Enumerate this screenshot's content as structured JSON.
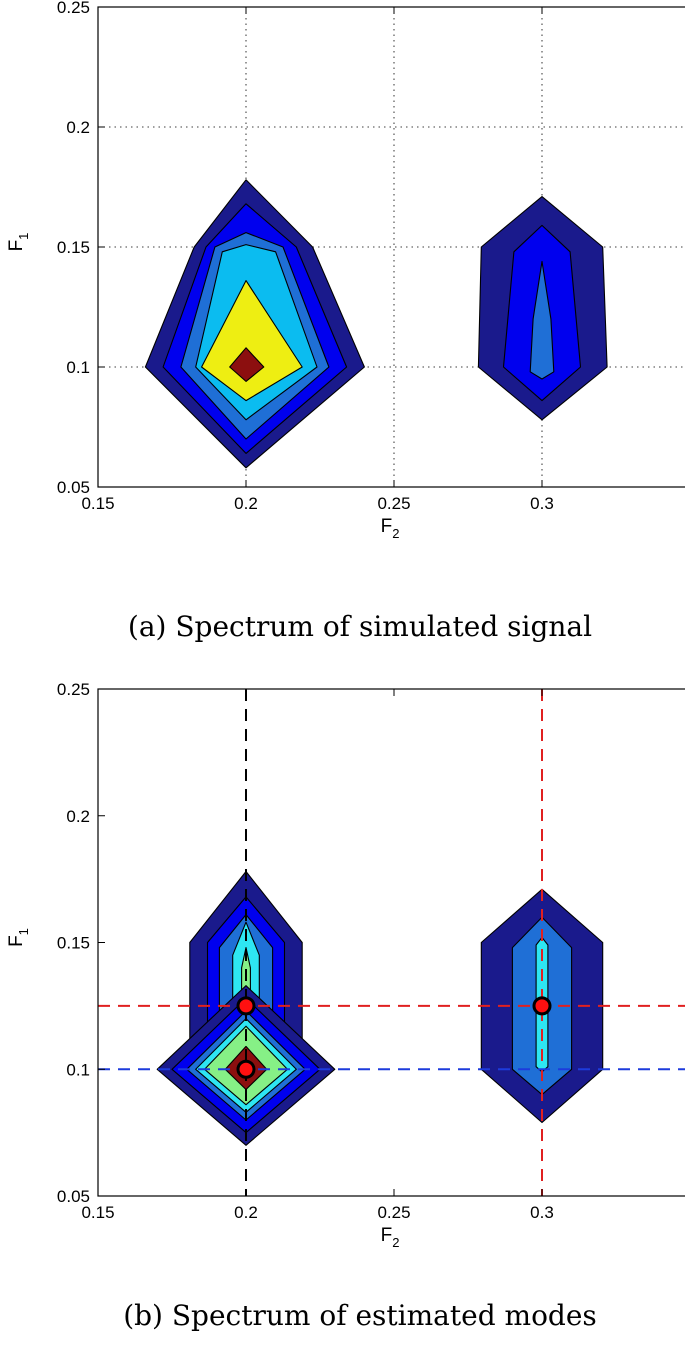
{
  "figure_a": {
    "caption": "(a) Spectrum of simulated signal"
  },
  "figure_b": {
    "caption": "(b) Spectrum of estimated modes"
  },
  "chart_data": [
    {
      "type": "contour",
      "title": "",
      "xlabel": "F",
      "xlabel_sub": "2",
      "ylabel": "F",
      "ylabel_sub": "1",
      "xlim": [
        0.15,
        0.35
      ],
      "ylim": [
        0.05,
        0.25
      ],
      "xticks": [
        "0.15",
        "0.2",
        "0.25",
        "0.3"
      ],
      "yticks": [
        "0.05",
        "0.1",
        "0.15",
        "0.2",
        "0.25"
      ],
      "grid": "dotted",
      "peaks": [
        {
          "center": [
            0.2,
            0.1
          ],
          "levels": [
            {
              "color": "#1a1a8c",
              "polygon": [
                [
                  0.2,
                  0.178
                ],
                [
                  0.2225,
                  0.15
                ],
                [
                  0.24,
                  0.1
                ],
                [
                  0.2,
                  0.058
                ],
                [
                  0.166,
                  0.1
                ],
                [
                  0.1825,
                  0.15
                ]
              ]
            },
            {
              "color": "#0000ee",
              "polygon": [
                [
                  0.2,
                  0.168
                ],
                [
                  0.217,
                  0.15
                ],
                [
                  0.234,
                  0.1
                ],
                [
                  0.2,
                  0.064
                ],
                [
                  0.172,
                  0.1
                ],
                [
                  0.1865,
                  0.15
                ]
              ]
            },
            {
              "color": "#1f6fd6",
              "polygon": [
                [
                  0.2,
                  0.156
                ],
                [
                  0.2125,
                  0.15
                ],
                [
                  0.228,
                  0.1
                ],
                [
                  0.2,
                  0.07
                ],
                [
                  0.178,
                  0.1
                ],
                [
                  0.1895,
                  0.15
                ]
              ]
            },
            {
              "color": "#0bbcf0",
              "polygon": [
                [
                  0.2,
                  0.151
                ],
                [
                  0.21,
                  0.148
                ],
                [
                  0.224,
                  0.1
                ],
                [
                  0.2,
                  0.078
                ],
                [
                  0.183,
                  0.1
                ],
                [
                  0.192,
                  0.148
                ]
              ]
            },
            {
              "color": "#eeee12",
              "polygon": [
                [
                  0.2,
                  0.136
                ],
                [
                  0.219,
                  0.1
                ],
                [
                  0.2,
                  0.086
                ],
                [
                  0.185,
                  0.1
                ]
              ]
            },
            {
              "color": "#8c0f0f",
              "polygon": [
                [
                  0.2,
                  0.108
                ],
                [
                  0.206,
                  0.1
                ],
                [
                  0.2,
                  0.094
                ],
                [
                  0.1945,
                  0.1
                ]
              ]
            }
          ]
        },
        {
          "center": [
            0.3,
            0.1
          ],
          "levels": [
            {
              "color": "#1a1a8c",
              "polygon": [
                [
                  0.3,
                  0.171
                ],
                [
                  0.3205,
                  0.15
                ],
                [
                  0.322,
                  0.1
                ],
                [
                  0.3,
                  0.078
                ],
                [
                  0.2785,
                  0.1
                ],
                [
                  0.2795,
                  0.15
                ]
              ]
            },
            {
              "color": "#0000ee",
              "polygon": [
                [
                  0.3,
                  0.159
                ],
                [
                  0.3095,
                  0.148
                ],
                [
                  0.313,
                  0.1
                ],
                [
                  0.3,
                  0.086
                ],
                [
                  0.287,
                  0.1
                ],
                [
                  0.2905,
                  0.148
                ]
              ]
            },
            {
              "color": "#1f6fd6",
              "polygon": [
                [
                  0.3,
                  0.144
                ],
                [
                  0.303,
                  0.12
                ],
                [
                  0.304,
                  0.098
                ],
                [
                  0.3,
                  0.095
                ],
                [
                  0.296,
                  0.098
                ],
                [
                  0.297,
                  0.12
                ]
              ]
            }
          ]
        }
      ]
    },
    {
      "type": "contour",
      "title": "",
      "xlabel": "F",
      "xlabel_sub": "2",
      "ylabel": "F",
      "ylabel_sub": "1",
      "xlim": [
        0.15,
        0.35
      ],
      "ylim": [
        0.05,
        0.25
      ],
      "xticks": [
        "0.15",
        "0.2",
        "0.25",
        "0.3"
      ],
      "yticks": [
        "0.05",
        "0.1",
        "0.15",
        "0.2",
        "0.25"
      ],
      "grid": "off",
      "guide_lines": [
        {
          "orientation": "vertical",
          "value": 0.2,
          "color": "#000000"
        },
        {
          "orientation": "vertical",
          "value": 0.3,
          "color": "#e02020"
        },
        {
          "orientation": "horizontal",
          "value": 0.125,
          "color": "#e02020"
        },
        {
          "orientation": "horizontal",
          "value": 0.1,
          "color": "#1d3bdc"
        }
      ],
      "peaks": [
        {
          "center": [
            0.2,
            0.125
          ],
          "levels": [
            {
              "color": "#1a1a8c",
              "polygon": [
                [
                  0.2,
                  0.178
                ],
                [
                  0.219,
                  0.15
                ],
                [
                  0.219,
                  0.1
                ],
                [
                  0.2,
                  0.08
                ],
                [
                  0.181,
                  0.1
                ],
                [
                  0.181,
                  0.15
                ]
              ]
            },
            {
              "color": "#0000ee",
              "polygon": [
                [
                  0.2,
                  0.168
                ],
                [
                  0.213,
                  0.15
                ],
                [
                  0.213,
                  0.1
                ],
                [
                  0.2,
                  0.085
                ],
                [
                  0.187,
                  0.1
                ],
                [
                  0.187,
                  0.15
                ]
              ]
            },
            {
              "color": "#1f6fd6",
              "polygon": [
                [
                  0.2,
                  0.161
                ],
                [
                  0.209,
                  0.148
                ],
                [
                  0.209,
                  0.1
                ],
                [
                  0.2,
                  0.09
                ],
                [
                  0.191,
                  0.1
                ],
                [
                  0.191,
                  0.148
                ]
              ]
            },
            {
              "color": "#2ee6f2",
              "polygon": [
                [
                  0.2,
                  0.158
                ],
                [
                  0.2045,
                  0.145
                ],
                [
                  0.2045,
                  0.105
                ],
                [
                  0.2,
                  0.095
                ],
                [
                  0.1955,
                  0.105
                ],
                [
                  0.1955,
                  0.145
                ]
              ]
            },
            {
              "color": "#86f086",
              "polygon": [
                [
                  0.2,
                  0.148
                ],
                [
                  0.2015,
                  0.14
                ],
                [
                  0.2015,
                  0.11
                ],
                [
                  0.2,
                  0.105
                ],
                [
                  0.1985,
                  0.11
                ],
                [
                  0.1985,
                  0.14
                ]
              ]
            }
          ]
        },
        {
          "center": [
            0.2,
            0.1
          ],
          "levels": [
            {
              "color": "#1a1a8c",
              "polygon": [
                [
                  0.2,
                  0.133
                ],
                [
                  0.23,
                  0.1
                ],
                [
                  0.2,
                  0.07
                ],
                [
                  0.17,
                  0.1
                ]
              ]
            },
            {
              "color": "#0000ee",
              "polygon": [
                [
                  0.2,
                  0.128
                ],
                [
                  0.225,
                  0.1
                ],
                [
                  0.2,
                  0.075
                ],
                [
                  0.175,
                  0.1
                ]
              ]
            },
            {
              "color": "#1f6fd6",
              "polygon": [
                [
                  0.2,
                  0.123
                ],
                [
                  0.22,
                  0.1
                ],
                [
                  0.2,
                  0.08
                ],
                [
                  0.18,
                  0.1
                ]
              ]
            },
            {
              "color": "#2ee6f2",
              "polygon": [
                [
                  0.2,
                  0.12
                ],
                [
                  0.217,
                  0.1
                ],
                [
                  0.2,
                  0.083
                ],
                [
                  0.183,
                  0.1
                ]
              ]
            },
            {
              "color": "#86f086",
              "polygon": [
                [
                  0.2,
                  0.117
                ],
                [
                  0.214,
                  0.1
                ],
                [
                  0.2,
                  0.086
                ],
                [
                  0.186,
                  0.1
                ]
              ]
            },
            {
              "color": "#8c0f0f",
              "polygon": [
                [
                  0.2,
                  0.109
                ],
                [
                  0.207,
                  0.1
                ],
                [
                  0.2,
                  0.092
                ],
                [
                  0.193,
                  0.1
                ]
              ]
            }
          ]
        },
        {
          "center": [
            0.3,
            0.125
          ],
          "levels": [
            {
              "color": "#1a1a8c",
              "polygon": [
                [
                  0.3,
                  0.171
                ],
                [
                  0.3205,
                  0.15
                ],
                [
                  0.3205,
                  0.1
                ],
                [
                  0.3,
                  0.079
                ],
                [
                  0.2795,
                  0.1
                ],
                [
                  0.2795,
                  0.15
                ]
              ]
            },
            {
              "color": "#1f6fd6",
              "polygon": [
                [
                  0.3,
                  0.16
                ],
                [
                  0.31,
                  0.148
                ],
                [
                  0.31,
                  0.1
                ],
                [
                  0.3,
                  0.09
                ],
                [
                  0.29,
                  0.1
                ],
                [
                  0.29,
                  0.148
                ]
              ]
            },
            {
              "color": "#2ee6f2",
              "polygon": [
                [
                  0.3,
                  0.152
                ],
                [
                  0.302,
                  0.149
                ],
                [
                  0.302,
                  0.101
                ],
                [
                  0.3,
                  0.099
                ],
                [
                  0.298,
                  0.101
                ],
                [
                  0.298,
                  0.149
                ]
              ]
            }
          ]
        }
      ],
      "markers": [
        {
          "x": 0.2,
          "y": 0.125,
          "color": "#ff1010"
        },
        {
          "x": 0.2,
          "y": 0.1,
          "color": "#ff1010"
        },
        {
          "x": 0.3,
          "y": 0.125,
          "color": "#ff1010"
        }
      ]
    }
  ]
}
